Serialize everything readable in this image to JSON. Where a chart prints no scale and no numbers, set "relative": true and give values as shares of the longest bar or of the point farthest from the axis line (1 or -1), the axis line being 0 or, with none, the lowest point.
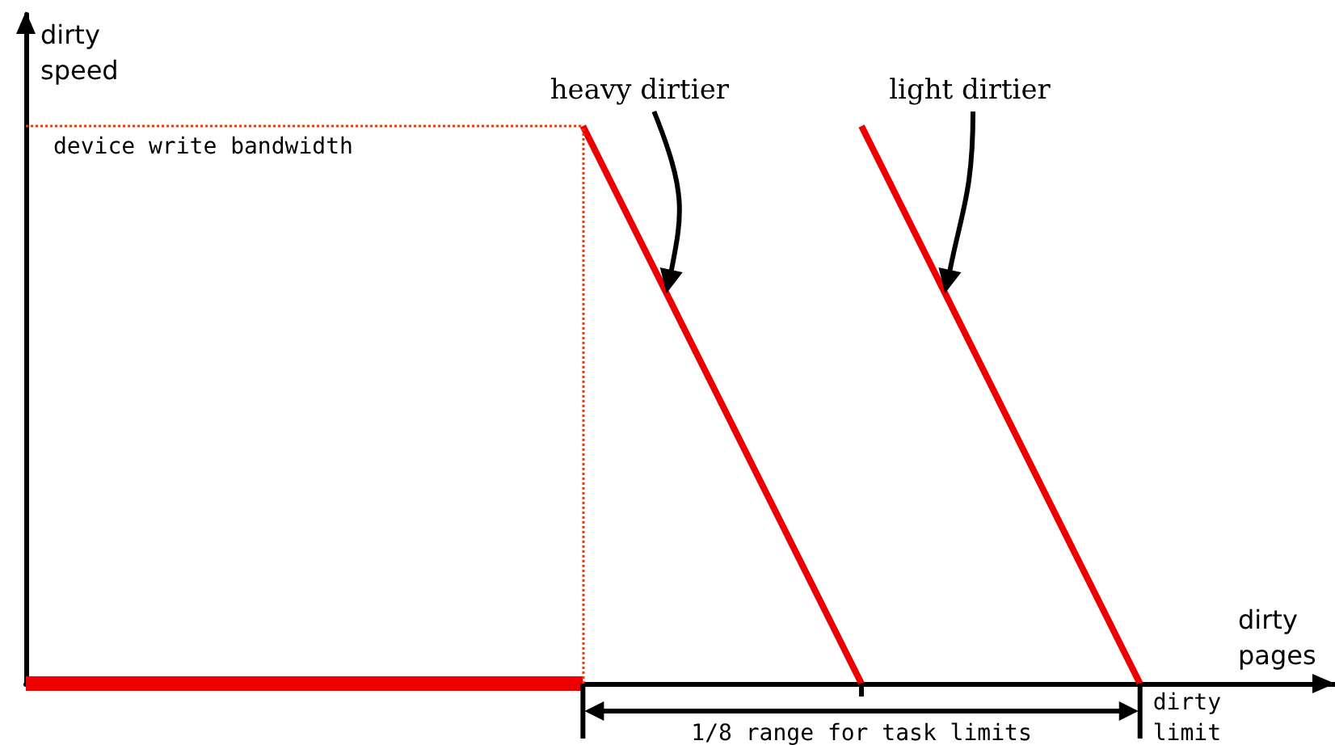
{
  "chart_data": {
    "type": "line",
    "relative": true,
    "xlabel": "dirty pages",
    "ylabel": "dirty speed",
    "categories": [
      null,
      null,
      null,
      null,
      null
    ],
    "series": [
      {
        "color": "#ee0000",
        "values": [
          0,
          0,
          0,
          null,
          null
        ]
      },
      {
        "name": "heavy dirtier",
        "color": "#ee0000",
        "values": [
          null,
          null,
          1,
          0,
          null
        ]
      },
      {
        "name": "light dirtier",
        "color": "#ee0000",
        "values": [
          null,
          null,
          null,
          1,
          0
        ]
      }
    ],
    "ref_lines": [
      {
        "axis": "y",
        "value": 1,
        "label": "device write bandwidth",
        "color": "#ff3300",
        "line_style": "dotted"
      }
    ],
    "annotations": [
      "1/8 range for task limits",
      "dirty limit"
    ],
    "legend": false,
    "grid": false,
    "marker": "none",
    "line_style": "solid"
  }
}
